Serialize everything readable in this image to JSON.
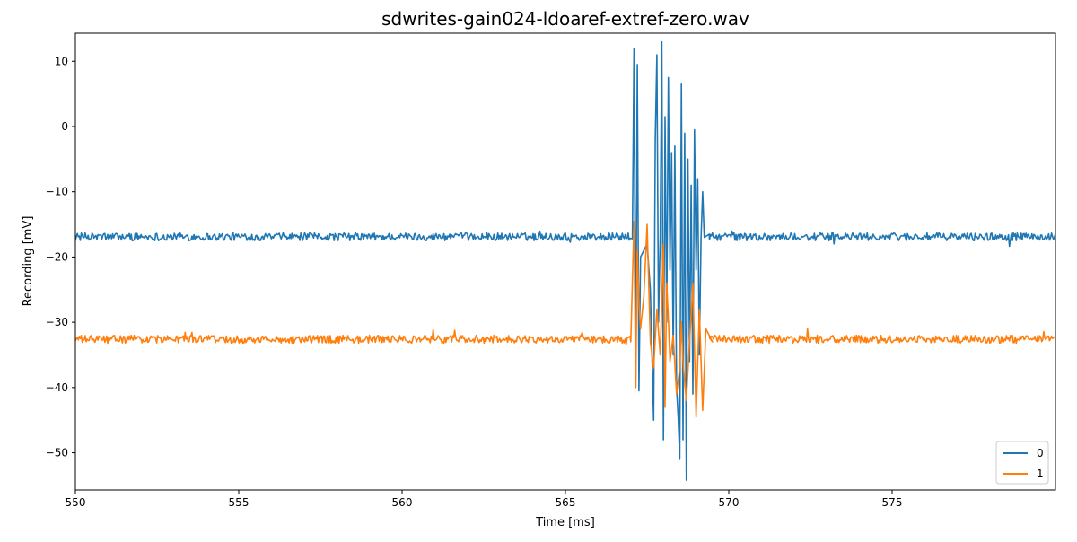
{
  "chart_data": {
    "type": "line",
    "title": "sdwrites-gain024-ldoaref-extref-zero.wav",
    "xlabel": "Time [ms]",
    "ylabel": "Recording [mV]",
    "xlim": [
      550,
      580
    ],
    "ylim": [
      -55.7,
      14.3
    ],
    "xticks": [
      550,
      555,
      560,
      565,
      570,
      575
    ],
    "xtick_labels": [
      "550",
      "555",
      "560",
      "565",
      "570",
      "575"
    ],
    "yticks": [
      10,
      0,
      -10,
      -20,
      -30,
      -40,
      -50
    ],
    "ytick_labels": [
      "10",
      "0",
      "−10",
      "−20",
      "−30",
      "−40",
      "−50"
    ],
    "grid": false,
    "legend_position": "bottom-right",
    "colors": {
      "0": "#1f77b4",
      "1": "#ff7f0e"
    },
    "series": [
      {
        "name": "0",
        "color": "#1f77b4",
        "baseline": -16.9,
        "noise_amplitude": 0.6,
        "spike_count": 70,
        "x_start": 550,
        "x_end": 580,
        "step_ms": 0.03,
        "points": [
          [
            550.0,
            -17.0
          ],
          [
            555.4,
            -19.3
          ],
          [
            557.0,
            -15.8
          ],
          [
            561.3,
            -18.5
          ],
          [
            563.3,
            -15.8
          ],
          [
            567.05,
            -17.2
          ],
          [
            567.1,
            12.0
          ],
          [
            567.15,
            -40.0
          ],
          [
            567.2,
            9.5
          ],
          [
            567.25,
            -40.5
          ],
          [
            567.3,
            -20.0
          ],
          [
            567.5,
            -18.0
          ],
          [
            567.6,
            -25.0
          ],
          [
            567.7,
            -45.0
          ],
          [
            567.75,
            -2.0
          ],
          [
            567.8,
            11.0
          ],
          [
            567.85,
            -30.0
          ],
          [
            567.9,
            -17.0
          ],
          [
            567.95,
            13.0
          ],
          [
            568.0,
            -48.0
          ],
          [
            568.05,
            1.5
          ],
          [
            568.1,
            -30.0
          ],
          [
            568.15,
            7.5
          ],
          [
            568.2,
            -22.0
          ],
          [
            568.25,
            -4.0
          ],
          [
            568.3,
            -35.0
          ],
          [
            568.35,
            -3.0
          ],
          [
            568.4,
            -40.0
          ],
          [
            568.45,
            -44.5
          ],
          [
            568.5,
            -51.0
          ],
          [
            568.55,
            6.5
          ],
          [
            568.6,
            -48.0
          ],
          [
            568.65,
            -1.0
          ],
          [
            568.7,
            -54.2
          ],
          [
            568.75,
            -5.0
          ],
          [
            568.8,
            -36.0
          ],
          [
            568.85,
            -9.0
          ],
          [
            568.9,
            -41.0
          ],
          [
            568.95,
            -0.5
          ],
          [
            569.0,
            -22.0
          ],
          [
            569.05,
            -8.0
          ],
          [
            569.1,
            -35.0
          ],
          [
            569.15,
            -17.0
          ],
          [
            569.2,
            -10.0
          ],
          [
            569.25,
            -17.0
          ],
          [
            569.4,
            -16.5
          ],
          [
            573.0,
            -15.5
          ],
          [
            577.2,
            -18.5
          ],
          [
            580.0,
            -16.5
          ]
        ]
      },
      {
        "name": "1",
        "color": "#ff7f0e",
        "baseline": -32.6,
        "noise_amplitude": 0.6,
        "spike_count": 70,
        "x_start": 550,
        "x_end": 580,
        "step_ms": 0.03,
        "points": [
          [
            550.0,
            -32.0
          ],
          [
            557.8,
            -30.0
          ],
          [
            558.0,
            -34.0
          ],
          [
            566.5,
            -31.7
          ],
          [
            567.0,
            -33.0
          ],
          [
            567.1,
            -14.5
          ],
          [
            567.15,
            -40.0
          ],
          [
            567.2,
            -19.0
          ],
          [
            567.25,
            -27.0
          ],
          [
            567.3,
            -31.0
          ],
          [
            567.4,
            -26.0
          ],
          [
            567.5,
            -15.0
          ],
          [
            567.6,
            -33.0
          ],
          [
            567.7,
            -37.0
          ],
          [
            567.8,
            -28.0
          ],
          [
            567.9,
            -35.0
          ],
          [
            568.0,
            -18.0
          ],
          [
            568.05,
            -43.0
          ],
          [
            568.1,
            -24.0
          ],
          [
            568.15,
            -29.5
          ],
          [
            568.2,
            -36.0
          ],
          [
            568.3,
            -32.0
          ],
          [
            568.4,
            -41.0
          ],
          [
            568.5,
            -37.0
          ],
          [
            568.55,
            -30.0
          ],
          [
            568.6,
            -36.0
          ],
          [
            568.7,
            -42.0
          ],
          [
            568.8,
            -33.0
          ],
          [
            568.9,
            -24.0
          ],
          [
            569.0,
            -44.5
          ],
          [
            569.1,
            -28.0
          ],
          [
            569.2,
            -43.5
          ],
          [
            569.3,
            -31.0
          ],
          [
            569.5,
            -33.0
          ],
          [
            573.1,
            -30.0
          ],
          [
            573.3,
            -35.5
          ],
          [
            580.0,
            -31.5
          ]
        ]
      }
    ]
  }
}
